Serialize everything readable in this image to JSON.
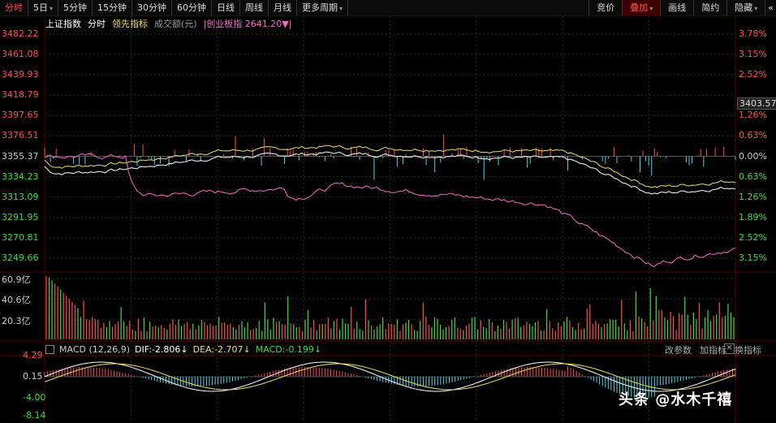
{
  "toolbar": {
    "left": [
      {
        "label": "分时",
        "active": true,
        "caret": false
      },
      {
        "label": "5日",
        "active": false,
        "caret": true
      },
      {
        "label": "5分钟",
        "active": false,
        "caret": false
      },
      {
        "label": "15分钟",
        "active": false,
        "caret": false
      },
      {
        "label": "30分钟",
        "active": false,
        "caret": false
      },
      {
        "label": "60分钟",
        "active": false,
        "caret": false
      },
      {
        "label": "日线",
        "active": false,
        "caret": false
      },
      {
        "label": "周线",
        "active": false,
        "caret": false
      },
      {
        "label": "月线",
        "active": false,
        "caret": false
      },
      {
        "label": "更多周期",
        "active": false,
        "caret": true
      }
    ],
    "right": [
      {
        "label": "竞价",
        "highlight": false,
        "caret": false
      },
      {
        "label": "叠加",
        "highlight": true,
        "caret": true
      },
      {
        "label": "画线",
        "highlight": false,
        "caret": false
      },
      {
        "label": "简约",
        "highlight": false,
        "caret": false
      },
      {
        "label": "隐藏",
        "highlight": false,
        "caret": true
      }
    ]
  },
  "indicator_bar": {
    "index_name": "上证指数",
    "mode": "分时",
    "leading": "领先指标",
    "volume": "成交额(元)",
    "overlay": "|创业板指 2641.20▼|"
  },
  "price_axis": {
    "left": [
      "3482.22",
      "3461.08",
      "3439.93",
      "3418.79",
      "3397.65",
      "3376.51",
      "3355.37",
      "3334.23",
      "3313.09",
      "3291.95",
      "3270.81",
      "3249.66"
    ],
    "right": [
      "3.78%",
      "3.15%",
      "2.52%",
      "1.89%",
      "1.26%",
      "0.63%",
      "0.00%",
      "0.63%",
      "1.26%",
      "1.89%",
      "2.52%",
      "3.15%"
    ],
    "current_price": "3403.57"
  },
  "volume_axis": [
    "60.9亿",
    "40.6亿",
    "20.3亿"
  ],
  "macd": {
    "title": "MACD (12,26,9)",
    "dif": "DIF:-2.806",
    "dea": "DEA:-2.707",
    "macd": "MACD:-0.199",
    "dif_arrow": "↓",
    "dea_arrow": "↓",
    "macd_arrow": "↓",
    "axis": [
      "4.29",
      "0.15",
      "-4.00",
      "-8.14"
    ],
    "buttons": [
      "改参数",
      "加指标",
      "换指标"
    ],
    "close": "✕"
  },
  "watermark": "头条 @水木千禧",
  "colors": {
    "up": "#ff4d4d",
    "down": "#3adf3a",
    "price_line": "#ffffff",
    "avg_line": "#f0e060",
    "overlay_line": "#ff66cc",
    "macd_up": "#ff4d4d",
    "macd_down": "#48d8e8"
  }
}
